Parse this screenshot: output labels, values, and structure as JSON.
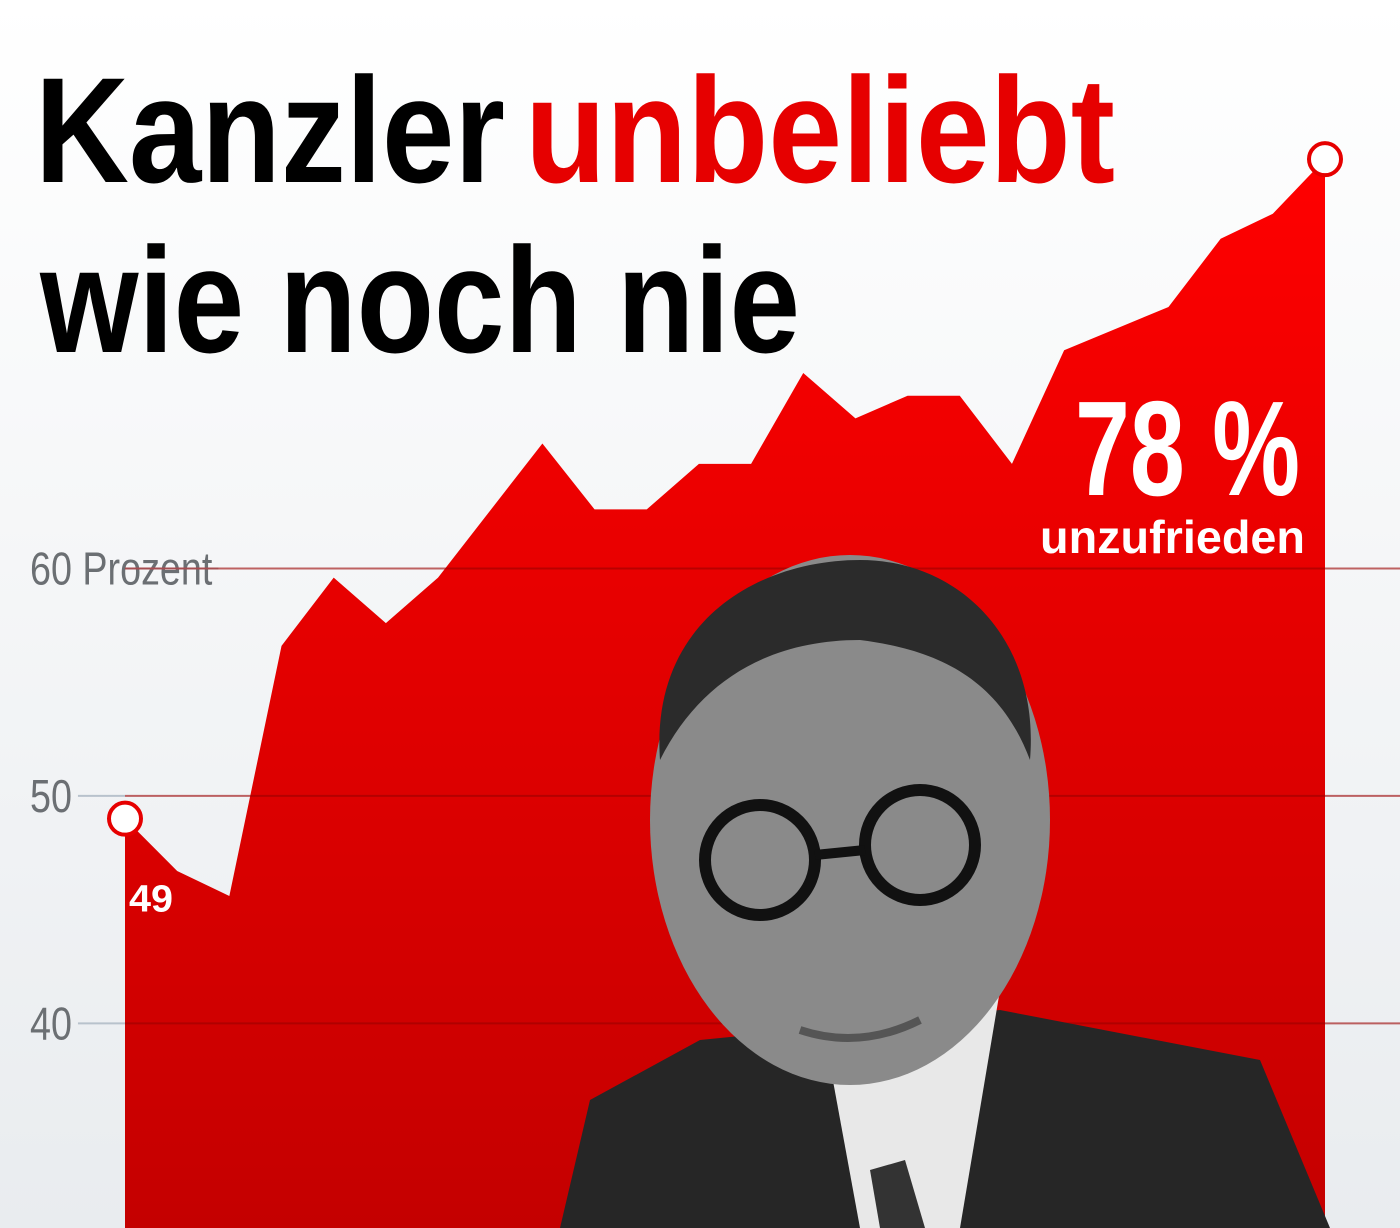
{
  "chart_data": {
    "type": "area",
    "title": [
      "Kanzler",
      "unbeliebt",
      "wie noch nie"
    ],
    "x": [
      0,
      1,
      2,
      3,
      4,
      5,
      6,
      8,
      9,
      10,
      11,
      12,
      13,
      14,
      15,
      16,
      17,
      18,
      20,
      21,
      22,
      23
    ],
    "xlim": [
      0,
      23
    ],
    "series": [
      {
        "color": "#e60000",
        "values": [
          49,
          46.7,
          45.6,
          56.6,
          59.6,
          57.6,
          59.6,
          65.5,
          62.6,
          62.6,
          64.6,
          64.6,
          68.6,
          66.6,
          67.6,
          67.6,
          64.6,
          69.6,
          71.5,
          74.5,
          75.6,
          78
        ],
        "value_labels": [
          "49",
          null,
          null,
          null,
          null,
          null,
          null,
          null,
          null,
          null,
          null,
          null,
          null,
          null,
          null,
          null,
          null,
          null,
          null,
          null,
          null,
          "78 %"
        ]
      }
    ],
    "annotation": "unzufrieden",
    "ylim": [
      31,
      85
    ],
    "yticks": [
      40,
      50,
      {
        "value": 60,
        "label": "60 Prozent"
      }
    ],
    "grid": true
  }
}
